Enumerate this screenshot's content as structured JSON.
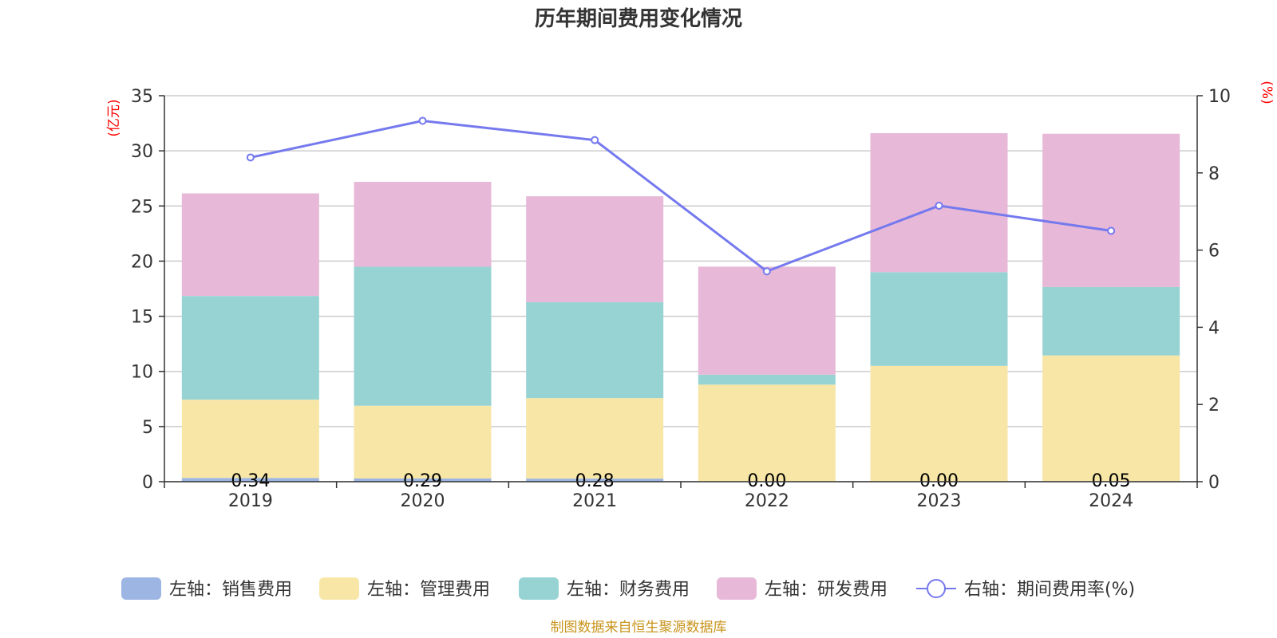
{
  "chart_data": {
    "type": "bar",
    "title": "历年期间费用变化情况",
    "left_axis_unit": "(亿元)",
    "right_axis_unit": "(%)",
    "left_ylim": [
      0,
      35
    ],
    "left_ticks": [
      "0",
      "5",
      "10",
      "15",
      "20",
      "25",
      "30",
      "35"
    ],
    "right_ylim": [
      0,
      10
    ],
    "right_ticks": [
      "0",
      "2",
      "4",
      "6",
      "8",
      "10"
    ],
    "categories": [
      "2019",
      "2020",
      "2021",
      "2022",
      "2023",
      "2024"
    ],
    "stacked": true,
    "grid": true,
    "legend_position": "bottom",
    "series": [
      {
        "name": "左轴：销售费用",
        "axis": "left",
        "color": "#9db5e2",
        "values": [
          0.34,
          0.29,
          0.28,
          0.0,
          0.0,
          0.05
        ],
        "labels": [
          "0.34",
          "0.29",
          "0.28",
          "0.00",
          "0.00",
          "0.05"
        ]
      },
      {
        "name": "左轴：管理费用",
        "axis": "left",
        "color": "#f7e6a6",
        "values": [
          7.1,
          6.6,
          7.3,
          8.8,
          10.5,
          11.4
        ]
      },
      {
        "name": "左轴：财务费用",
        "axis": "left",
        "color": "#98d3d4",
        "values": [
          9.4,
          12.6,
          8.7,
          0.9,
          8.5,
          6.2
        ]
      },
      {
        "name": "左轴：研发费用",
        "axis": "left",
        "color": "#e7b8d8",
        "values": [
          9.3,
          7.7,
          9.6,
          9.8,
          12.6,
          13.9
        ]
      },
      {
        "name": "右轴：期间费用率(%)",
        "axis": "right",
        "type": "line",
        "color": "#7579ee",
        "values": [
          8.4,
          9.35,
          8.85,
          5.45,
          7.15,
          6.5
        ]
      }
    ]
  },
  "source": "制图数据来自恒生聚源数据库"
}
